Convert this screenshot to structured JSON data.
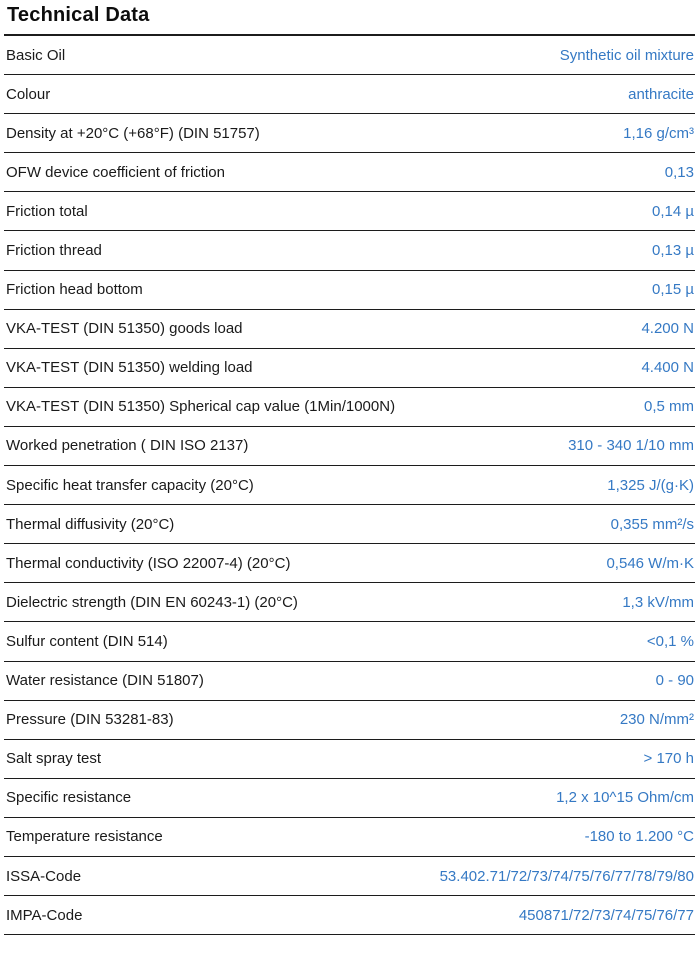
{
  "page": {
    "title": "Technical Data",
    "accent_color": "#3579c4",
    "label_color": "#1a1a1a",
    "rule_color": "#1c1c1c"
  },
  "table": {
    "rows": [
      {
        "label": "Basic Oil",
        "value": "Synthetic oil mixture"
      },
      {
        "label": "Colour",
        "value": "anthracite"
      },
      {
        "label": "Density at +20°C (+68°F) (DIN 51757)",
        "value": "1,16 g/cm³"
      },
      {
        "label": "OFW device coefficient of friction",
        "value": "0,13"
      },
      {
        "label": "Friction total",
        "value": "0,14 µ"
      },
      {
        "label": "Friction thread",
        "value": "0,13 µ"
      },
      {
        "label": "Friction head bottom",
        "value": "0,15 µ"
      },
      {
        "label": "VKA-TEST (DIN 51350) goods load",
        "value": "4.200 N"
      },
      {
        "label": "VKA-TEST (DIN 51350) welding load",
        "value": "4.400 N"
      },
      {
        "label": "VKA-TEST (DIN 51350) Spherical cap value (1Min/1000N)",
        "value": "0,5 mm"
      },
      {
        "label": "Worked penetration ( DIN ISO 2137)",
        "value": "310 - 340 1/10 mm"
      },
      {
        "label": "Specific heat transfer capacity (20°C)",
        "value": "1,325 J/(g·K)"
      },
      {
        "label": "Thermal diffusivity (20°C)",
        "value": "0,355 mm²/s"
      },
      {
        "label": "Thermal conductivity (ISO 22007-4) (20°C)",
        "value": "0,546 W/m·K"
      },
      {
        "label": "Dielectric strength (DIN EN 60243-1) (20°C)",
        "value": "1,3 kV/mm"
      },
      {
        "label": "Sulfur content (DIN 514)",
        "value": "<0,1 %"
      },
      {
        "label": "Water resistance (DIN 51807)",
        "value": "0 - 90"
      },
      {
        "label": "Pressure (DIN 53281-83)",
        "value": "230 N/mm²"
      },
      {
        "label": "Salt spray test",
        "value": "> 170 h"
      },
      {
        "label": "Specific resistance",
        "value": "1,2 x 10^15 Ohm/cm"
      },
      {
        "label": "Temperature resistance",
        "value": "-180 to 1.200 °C"
      },
      {
        "label": "ISSA-Code",
        "value": "53.402.71/72/73/74/75/76/77/78/79/80"
      },
      {
        "label": "IMPA-Code",
        "value": "450871/72/73/74/75/76/77"
      }
    ]
  }
}
